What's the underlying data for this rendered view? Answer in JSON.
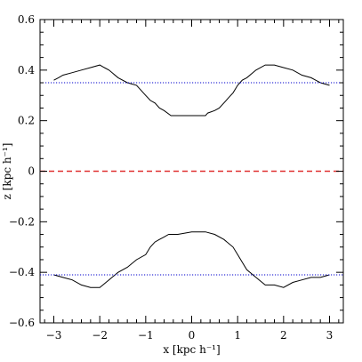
{
  "chart_data": {
    "type": "line",
    "title": "",
    "xlabel": "x [kpc h⁻¹]",
    "ylabel": "z [kpc h⁻¹]",
    "xlim": [
      -3.3,
      3.3
    ],
    "ylim": [
      -0.6,
      0.6
    ],
    "xticks": [
      -3,
      -2,
      -1,
      0,
      1,
      2,
      3
    ],
    "xtick_labels": [
      "−3",
      "−2",
      "−1",
      "0",
      "1",
      "2",
      "3"
    ],
    "yticks": [
      -0.6,
      -0.4,
      -0.2,
      0,
      0.2,
      0.4,
      0.6
    ],
    "ytick_labels": [
      "−0.6",
      "−0.4",
      "−0.2",
      "0",
      "0.2",
      "0.4",
      "0.6"
    ],
    "grid": false,
    "series": [
      {
        "style": "solid",
        "color": "#000000",
        "x": [
          -3.0,
          -2.9,
          -2.8,
          -2.6,
          -2.4,
          -2.2,
          -2.0,
          -1.9,
          -1.8,
          -1.6,
          -1.4,
          -1.2,
          -1.0,
          -0.9,
          -0.8,
          -0.7,
          -0.6,
          -0.45,
          -0.3,
          0.0,
          0.3,
          0.35,
          0.5,
          0.6,
          0.7,
          0.8,
          0.9,
          1.0,
          1.1,
          1.2,
          1.4,
          1.6,
          1.8,
          2.0,
          2.2,
          2.4,
          2.6,
          2.7,
          2.8,
          3.0
        ],
        "y": [
          0.36,
          0.37,
          0.38,
          0.39,
          0.4,
          0.41,
          0.42,
          0.41,
          0.4,
          0.37,
          0.35,
          0.34,
          0.3,
          0.28,
          0.27,
          0.25,
          0.24,
          0.22,
          0.22,
          0.22,
          0.22,
          0.23,
          0.24,
          0.25,
          0.27,
          0.29,
          0.31,
          0.34,
          0.36,
          0.37,
          0.4,
          0.42,
          0.42,
          0.41,
          0.4,
          0.38,
          0.37,
          0.36,
          0.35,
          0.34
        ]
      },
      {
        "style": "solid",
        "color": "#000000",
        "x": [
          -3.0,
          -2.8,
          -2.6,
          -2.4,
          -2.2,
          -2.0,
          -1.8,
          -1.6,
          -1.4,
          -1.2,
          -1.0,
          -0.9,
          -0.8,
          -0.7,
          -0.6,
          -0.5,
          -0.3,
          0.0,
          0.1,
          0.3,
          0.5,
          0.7,
          0.9,
          1.0,
          1.1,
          1.2,
          1.4,
          1.6,
          1.8,
          2.0,
          2.2,
          2.4,
          2.6,
          2.8,
          3.0
        ],
        "y": [
          -0.41,
          -0.42,
          -0.43,
          -0.45,
          -0.46,
          -0.46,
          -0.43,
          -0.4,
          -0.38,
          -0.35,
          -0.33,
          -0.3,
          -0.28,
          -0.27,
          -0.26,
          -0.25,
          -0.25,
          -0.24,
          -0.24,
          -0.24,
          -0.25,
          -0.27,
          -0.3,
          -0.33,
          -0.36,
          -0.39,
          -0.42,
          -0.45,
          -0.45,
          -0.46,
          -0.44,
          -0.43,
          -0.42,
          -0.42,
          -0.41
        ]
      },
      {
        "style": "dotted",
        "color": "#0000cc",
        "x": [
          -3.3,
          3.3
        ],
        "y": [
          0.35,
          0.35
        ]
      },
      {
        "style": "dotted",
        "color": "#0000cc",
        "x": [
          -3.3,
          3.3
        ],
        "y": [
          -0.41,
          -0.41
        ]
      },
      {
        "style": "dashed",
        "color": "#e03030",
        "x": [
          -3.3,
          3.3
        ],
        "y": [
          0.0,
          0.0
        ]
      }
    ]
  }
}
